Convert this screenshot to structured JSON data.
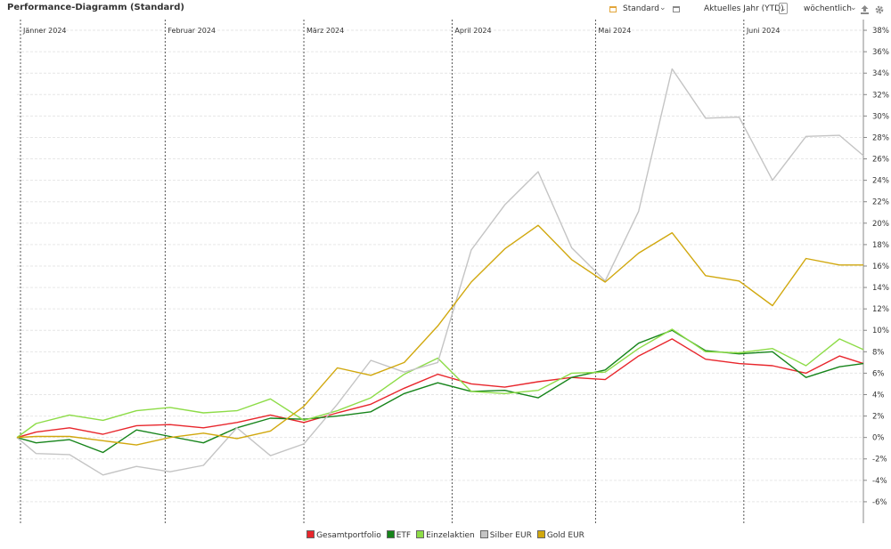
{
  "header": {
    "title": "Performance-Diagramm (Standard)",
    "view_select": "Standard",
    "period_select": "Aktuelles Jahr (YTD)",
    "interval_select": "wöchentlich"
  },
  "icons": [
    "calendar-icon",
    "chevron-down-icon",
    "calendar-icon",
    "chevron-down-icon",
    "chevron-down-icon",
    "upload-icon",
    "gear-icon"
  ],
  "colors": {
    "Gesamtportfolio": "#e8262c",
    "ETF": "#16841a",
    "Einzelaktien": "#8ddc47",
    "Silber EUR": "#c4c4c4",
    "Gold EUR": "#d1a80e",
    "accent": "#e2a63b"
  },
  "chart_data": {
    "type": "line",
    "x_start": "2024-01-01",
    "x_end": "2024-06-26",
    "month_markers": [
      {
        "label": "Jänner 2024",
        "date": "2024-01-01"
      },
      {
        "label": "Februar 2024",
        "date": "2024-02-01"
      },
      {
        "label": "März 2024",
        "date": "2024-03-01"
      },
      {
        "label": "April 2024",
        "date": "2024-04-01"
      },
      {
        "label": "Mai 2024",
        "date": "2024-05-01"
      },
      {
        "label": "Juni 2024",
        "date": "2024-06-01"
      }
    ],
    "x": [
      "2024-01-01",
      "2024-01-05",
      "2024-01-12",
      "2024-01-19",
      "2024-01-26",
      "2024-02-02",
      "2024-02-09",
      "2024-02-16",
      "2024-02-23",
      "2024-03-01",
      "2024-03-08",
      "2024-03-15",
      "2024-03-22",
      "2024-03-29",
      "2024-04-05",
      "2024-04-12",
      "2024-04-19",
      "2024-04-26",
      "2024-05-03",
      "2024-05-10",
      "2024-05-17",
      "2024-05-24",
      "2024-05-31",
      "2024-06-07",
      "2024-06-14",
      "2024-06-21",
      "2024-06-26"
    ],
    "series": [
      {
        "name": "Gesamtportfolio",
        "values": [
          0,
          0.5,
          0.9,
          0.3,
          1.1,
          1.2,
          0.9,
          1.4,
          2.1,
          1.4,
          2.3,
          3.1,
          4.6,
          5.9,
          5.0,
          4.7,
          5.2,
          5.6,
          5.4,
          7.6,
          9.2,
          7.3,
          6.9,
          6.7,
          6.0,
          7.6,
          6.9
        ]
      },
      {
        "name": "ETF",
        "values": [
          0,
          -0.5,
          -0.2,
          -1.4,
          0.7,
          0.1,
          -0.5,
          0.9,
          1.8,
          1.7,
          2.0,
          2.4,
          4.1,
          5.1,
          4.3,
          4.4,
          3.7,
          5.6,
          6.3,
          8.8,
          10.0,
          8.1,
          7.8,
          8.0,
          5.6,
          6.6,
          6.9
        ]
      },
      {
        "name": "Einzelaktien",
        "values": [
          0,
          1.3,
          2.1,
          1.6,
          2.5,
          2.8,
          2.3,
          2.5,
          3.6,
          1.6,
          2.5,
          3.7,
          5.9,
          7.4,
          4.3,
          4.1,
          4.4,
          6.0,
          6.1,
          8.3,
          10.1,
          8.0,
          7.9,
          8.3,
          6.7,
          9.2,
          8.2
        ]
      },
      {
        "name": "Silber EUR",
        "values": [
          0,
          -1.5,
          -1.6,
          -3.5,
          -2.7,
          -3.2,
          -2.6,
          0.9,
          -1.7,
          -0.6,
          3.1,
          7.2,
          6.1,
          7.0,
          17.5,
          21.7,
          24.8,
          17.7,
          14.6,
          21.1,
          34.4,
          29.8,
          29.9,
          24.0,
          28.1,
          28.2,
          26.3
        ]
      },
      {
        "name": "Gold EUR",
        "values": [
          0,
          0.1,
          0.1,
          -0.3,
          -0.7,
          0.0,
          0.4,
          -0.1,
          0.6,
          2.9,
          6.5,
          5.8,
          7.0,
          10.4,
          14.5,
          17.6,
          19.8,
          16.6,
          14.5,
          17.2,
          19.1,
          15.1,
          14.6,
          12.3,
          16.7,
          16.1,
          16.1
        ]
      }
    ],
    "yticks": [
      "38%",
      "36%",
      "34%",
      "32%",
      "30%",
      "28%",
      "26%",
      "24%",
      "22%",
      "20%",
      "18%",
      "16%",
      "14%",
      "12%",
      "10%",
      "8%",
      "6%",
      "4%",
      "2%",
      "0%",
      "-2%",
      "-4%",
      "-6%"
    ],
    "ylim": [
      -8,
      39
    ],
    "grid": true,
    "legend_position": "bottom-center"
  }
}
